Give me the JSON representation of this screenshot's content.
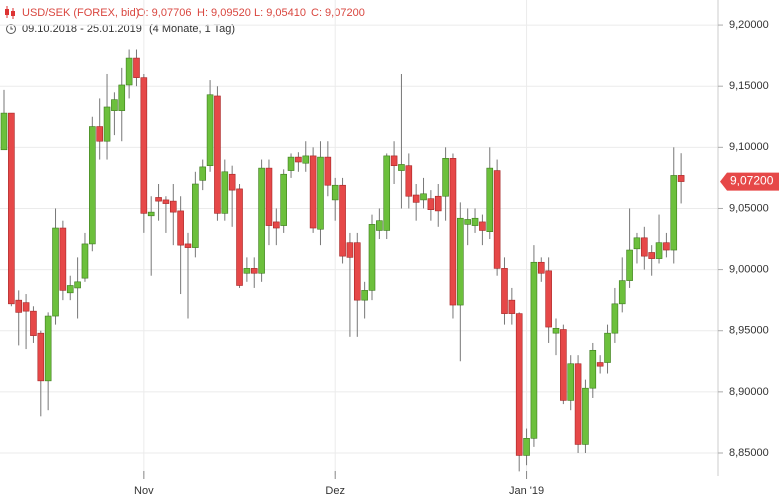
{
  "chart_data": {
    "type": "candlestick",
    "title": "USD/SEK (FOREX, bid)",
    "ohlc_summary": [
      "O: 9,07706",
      "H: 9,09520",
      "L: 9,05410",
      "C: 9,07200"
    ],
    "period": "09.10.2018 - 25.01.2019",
    "period_note": "(4 Monate, 1 Tag)",
    "categories": [
      null,
      null,
      null,
      null,
      null,
      null,
      null,
      null,
      null,
      null,
      null,
      null,
      null,
      null,
      null,
      null,
      null,
      null,
      null,
      "Nov",
      null,
      null,
      null,
      null,
      null,
      null,
      null,
      null,
      null,
      null,
      null,
      null,
      null,
      null,
      null,
      null,
      null,
      null,
      null,
      null,
      null,
      null,
      null,
      null,
      null,
      "Dez",
      null,
      null,
      null,
      null,
      null,
      null,
      null,
      null,
      null,
      null,
      null,
      null,
      null,
      null,
      null,
      null,
      null,
      null,
      null,
      null,
      null,
      null,
      null,
      null,
      null,
      "Jan '19",
      null,
      null,
      null,
      null,
      null,
      null,
      null,
      null,
      null,
      null,
      null,
      null,
      null,
      null,
      null,
      null,
      null,
      null,
      null,
      null,
      null
    ],
    "open": [
      9.098,
      9.128,
      8.975,
      8.973,
      8.966,
      8.948,
      8.909,
      8.962,
      9.034,
      8.981,
      8.985,
      8.993,
      9.021,
      9.117,
      9.105,
      9.13,
      9.13,
      9.151,
      9.173,
      9.157,
      9.044,
      9.059,
      9.057,
      9.056,
      9.048,
      9.021,
      9.018,
      9.073,
      9.085,
      9.142,
      9.046,
      9.078,
      9.066,
      8.997,
      9.001,
      8.997,
      9.083,
      9.039,
      9.036,
      9.081,
      9.092,
      9.087,
      9.093,
      9.033,
      9.092,
      9.057,
      9.069,
      9.022,
      9.022,
      8.975,
      8.983,
      9.032,
      9.032,
      9.093,
      9.081,
      9.085,
      9.061,
      9.057,
      9.058,
      9.06,
      9.06,
      9.091,
      8.971,
      9.037,
      9.036,
      9.039,
      9.031,
      9.081,
      9.001,
      8.975,
      8.964,
      8.848,
      8.862,
      9.006,
      8.999,
      8.948,
      8.951,
      8.893,
      8.923,
      8.857,
      8.903,
      8.924,
      8.924,
      8.948,
      8.972,
      8.991,
      9.017,
      9.026,
      9.014,
      9.009,
      9.022,
      9.016,
      9.07706
    ],
    "high": [
      9.147,
      9.128,
      8.983,
      8.98,
      8.97,
      8.95,
      8.965,
      9.05,
      9.04,
      8.995,
      9.01,
      9.03,
      9.125,
      9.14,
      9.16,
      9.145,
      9.165,
      9.18,
      9.18,
      9.16,
      9.06,
      9.07,
      9.06,
      9.07,
      9.06,
      9.03,
      9.08,
      9.09,
      9.155,
      9.15,
      9.09,
      9.085,
      9.07,
      9.01,
      9.01,
      9.09,
      9.09,
      9.05,
      9.082,
      9.095,
      9.096,
      9.105,
      9.1,
      9.105,
      9.105,
      9.075,
      9.075,
      9.03,
      9.03,
      8.99,
      9.045,
      9.05,
      9.095,
      9.105,
      9.16,
      9.095,
      9.07,
      9.075,
      9.065,
      9.07,
      9.1,
      9.095,
      9.055,
      9.05,
      9.05,
      9.045,
      9.1,
      9.09,
      9.01,
      8.985,
      8.965,
      8.87,
      9.02,
      9.01,
      9.01,
      8.96,
      8.955,
      8.93,
      8.93,
      8.91,
      8.94,
      8.93,
      8.955,
      8.985,
      9.01,
      9.05,
      9.03,
      9.035,
      9.02,
      9.045,
      9.03,
      9.1,
      9.0952
    ],
    "low": [
      9.098,
      8.97,
      8.938,
      8.935,
      8.94,
      8.88,
      8.885,
      8.955,
      8.975,
      8.975,
      8.96,
      8.99,
      9.015,
      9.09,
      9.09,
      9.11,
      9.105,
      9.14,
      9.15,
      9.03,
      8.995,
      9.04,
      9.03,
      9.02,
      8.98,
      8.96,
      9.01,
      9.065,
      9.08,
      9.04,
      9.04,
      9.035,
      8.985,
      8.99,
      8.985,
      8.99,
      9.02,
      9.02,
      9.03,
      9.075,
      9.08,
      9.08,
      9.03,
      9.02,
      9.06,
      9.04,
      9.005,
      8.945,
      8.945,
      8.96,
      8.975,
      9.025,
      9.025,
      9.07,
      9.05,
      9.05,
      9.04,
      9.05,
      9.04,
      9.035,
      9.04,
      8.96,
      8.925,
      9.02,
      9.03,
      9.02,
      9.025,
      8.995,
      8.955,
      8.955,
      8.835,
      8.84,
      8.855,
      8.99,
      8.94,
      8.93,
      8.89,
      8.885,
      8.85,
      8.85,
      8.895,
      8.915,
      8.915,
      8.94,
      8.965,
      8.985,
      9.005,
      9.0,
      8.995,
      9.005,
      9.01,
      9.005,
      9.0541
    ],
    "close": [
      9.128,
      8.972,
      8.965,
      8.966,
      8.946,
      8.909,
      8.962,
      9.034,
      8.983,
      8.987,
      8.99,
      9.021,
      9.117,
      9.105,
      9.133,
      9.139,
      9.151,
      9.173,
      9.157,
      9.046,
      9.047,
      9.056,
      9.054,
      9.047,
      9.02,
      9.018,
      9.07,
      9.084,
      9.143,
      9.046,
      9.08,
      9.065,
      8.987,
      9.001,
      8.997,
      9.083,
      9.036,
      9.034,
      9.078,
      9.092,
      9.088,
      9.093,
      9.034,
      9.092,
      9.069,
      9.069,
      9.011,
      9.01,
      8.975,
      8.983,
      9.037,
      9.04,
      9.093,
      9.085,
      9.086,
      9.06,
      9.055,
      9.062,
      9.049,
      9.048,
      9.091,
      8.971,
      9.042,
      9.041,
      9.042,
      9.032,
      9.083,
      9.001,
      8.964,
      8.964,
      8.848,
      8.862,
      9.006,
      8.997,
      8.953,
      8.952,
      8.893,
      8.923,
      8.857,
      8.903,
      8.934,
      8.921,
      8.948,
      8.972,
      8.991,
      9.016,
      9.026,
      9.011,
      9.009,
      9.022,
      9.016,
      9.077,
      9.072
    ],
    "close_label": {
      "value": 9.072,
      "label": "9,07200"
    },
    "up_color": "#6cc03c",
    "down_color": "#e64848",
    "ylim": [
      8.832,
      9.2205
    ],
    "yticks": [
      {
        "value": 8.85,
        "label": "8,85000"
      },
      {
        "value": 8.9,
        "label": "8,90000"
      },
      {
        "value": 8.95,
        "label": "8,95000"
      },
      {
        "value": 9.0,
        "label": "9,00000"
      },
      {
        "value": 9.05,
        "label": "9,05000"
      },
      {
        "value": 9.1,
        "label": "9,10000"
      },
      {
        "value": 9.15,
        "label": "9,15000"
      },
      {
        "value": 9.2,
        "label": "9,20000"
      }
    ],
    "grid": true
  }
}
